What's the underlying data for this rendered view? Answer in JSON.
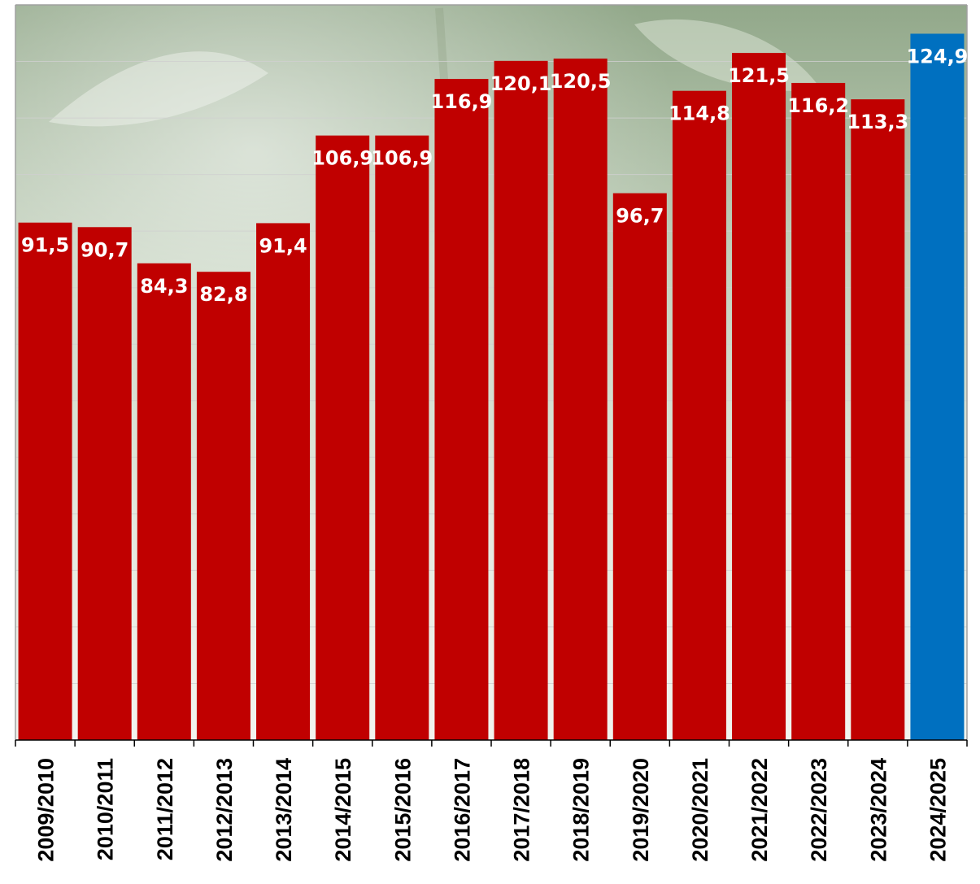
{
  "chart_data": {
    "type": "bar",
    "categories": [
      "2009/2010",
      "2010/2011",
      "2011/2012",
      "2012/2013",
      "2013/2014",
      "2014/2015",
      "2015/2016",
      "2016/2017",
      "2017/2018",
      "2018/2019",
      "2019/2020",
      "2020/2021",
      "2021/2022",
      "2022/2023",
      "2023/2024",
      "2024/2025"
    ],
    "values": [
      91.5,
      90.7,
      84.3,
      82.8,
      91.4,
      106.9,
      106.9,
      116.9,
      120.1,
      120.5,
      96.7,
      114.8,
      121.5,
      116.2,
      113.3,
      124.9
    ],
    "value_labels": [
      "91,5",
      "90,7",
      "84,3",
      "82,8",
      "91,4",
      "106,9",
      "106,9",
      "116,9",
      "120,1",
      "120,5",
      "96,7",
      "114,8",
      "121,5",
      "116,2",
      "113,3",
      "124,9"
    ],
    "highlight_index": 15,
    "ylim": [
      0,
      130
    ],
    "grid": true,
    "legend": "none",
    "title": "",
    "xlabel": "",
    "ylabel": ""
  },
  "colors": {
    "bar": "#c00000",
    "highlight_bar": "#0070c0",
    "label": "#ffffff",
    "axis": "#000000",
    "grid": "#d0d0d0",
    "background_light": "#e6ede3",
    "background_dark": "#6f8a66"
  }
}
